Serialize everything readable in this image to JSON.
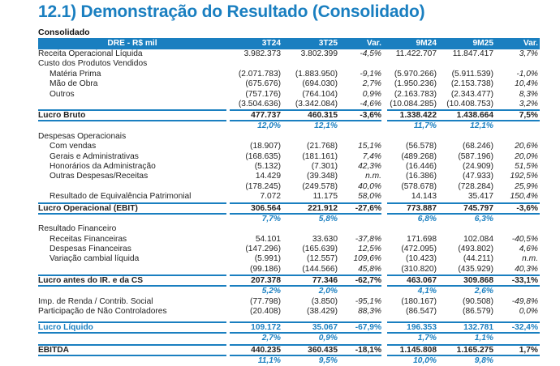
{
  "title": "12.1) Demonstração do Resultado (Consolidado)",
  "subtitle": "Consolidado",
  "colors": {
    "accent": "#1a7fc0"
  },
  "table": {
    "headers": [
      "DRE - R$ mil",
      "3T24",
      "3T25",
      "Var.",
      "9M24",
      "9M25",
      "Var."
    ],
    "rows": [
      {
        "type": "normal",
        "cells": [
          "Receita Operacional Líquida",
          "3.982.373",
          "3.802.399",
          "-4,5%",
          "11.422.707",
          "11.847.417",
          "3,7%"
        ]
      },
      {
        "type": "normal",
        "cells": [
          "Custo dos Produtos Vendidos",
          "",
          "",
          "",
          "",
          "",
          ""
        ]
      },
      {
        "type": "indent",
        "cells": [
          "Matéria Prima",
          "(2.071.783)",
          "(1.883.950)",
          "-9,1%",
          "(5.970.266)",
          "(5.911.539)",
          "-1,0%"
        ]
      },
      {
        "type": "indent",
        "cells": [
          "Mão de Obra",
          "(675.676)",
          "(694.030)",
          "2,7%",
          "(1.950.236)",
          "(2.153.738)",
          "10,4%"
        ]
      },
      {
        "type": "indent",
        "cells": [
          "Outros",
          "(757.176)",
          "(764.104)",
          "0,9%",
          "(2.163.783)",
          "(2.343.477)",
          "8,3%"
        ]
      },
      {
        "type": "normal",
        "cells": [
          "",
          "(3.504.636)",
          "(3.342.084)",
          "-4,6%",
          "(10.084.285)",
          "(10.408.753)",
          "3,2%"
        ]
      },
      {
        "type": "bold",
        "cells": [
          "Lucro Bruto",
          "477.737",
          "460.315",
          "-3,6%",
          "1.338.422",
          "1.438.664",
          "7,5%"
        ]
      },
      {
        "type": "margin",
        "cells": [
          "",
          "12,0%",
          "12,1%",
          "",
          "11,7%",
          "12,1%",
          ""
        ]
      },
      {
        "type": "normal",
        "cells": [
          "Despesas Operacionais",
          "",
          "",
          "",
          "",
          "",
          ""
        ]
      },
      {
        "type": "indent",
        "cells": [
          "Com vendas",
          "(18.907)",
          "(21.768)",
          "15,1%",
          "(56.578)",
          "(68.246)",
          "20,6%"
        ]
      },
      {
        "type": "indent",
        "cells": [
          "Gerais e Administrativas",
          "(168.635)",
          "(181.161)",
          "7,4%",
          "(489.268)",
          "(587.196)",
          "20,0%"
        ]
      },
      {
        "type": "indent",
        "cells": [
          "Honorários da Administração",
          "(5.132)",
          "(7.301)",
          "42,3%",
          "(16.446)",
          "(24.909)",
          "51,5%"
        ]
      },
      {
        "type": "indent",
        "cells": [
          "Outras Despesas/Receitas",
          "14.429",
          "(39.348)",
          "n.m.",
          "(16.386)",
          "(47.933)",
          "192,5%"
        ]
      },
      {
        "type": "normal",
        "cells": [
          "",
          "(178.245)",
          "(249.578)",
          "40,0%",
          "(578.678)",
          "(728.284)",
          "25,9%"
        ]
      },
      {
        "type": "indent",
        "cells": [
          "Resultado de Equivalência Patrimonial",
          "7.072",
          "11.175",
          "58,0%",
          "14.143",
          "35.417",
          "150,4%"
        ]
      },
      {
        "type": "bold",
        "cells": [
          "Lucro Operacional (EBIT)",
          "306.564",
          "221.912",
          "-27,6%",
          "773.887",
          "745.797",
          "-3,6%"
        ]
      },
      {
        "type": "margin",
        "cells": [
          "",
          "7,7%",
          "5,8%",
          "",
          "6,8%",
          "6,3%",
          ""
        ]
      },
      {
        "type": "normal",
        "cells": [
          "Resultado Financeiro",
          "",
          "",
          "",
          "",
          "",
          ""
        ]
      },
      {
        "type": "indent",
        "cells": [
          "Receitas Financeiras",
          "54.101",
          "33.630",
          "-37,8%",
          "171.698",
          "102.084",
          "-40,5%"
        ]
      },
      {
        "type": "indent",
        "cells": [
          "Despesas Financeiras",
          "(147.296)",
          "(165.639)",
          "12,5%",
          "(472.095)",
          "(493.802)",
          "4,6%"
        ]
      },
      {
        "type": "indent",
        "cells": [
          "Variação cambial líquida",
          "(5.991)",
          "(12.557)",
          "109,6%",
          "(10.423)",
          "(44.211)",
          "n.m."
        ]
      },
      {
        "type": "normal",
        "cells": [
          "",
          "(99.186)",
          "(144.566)",
          "45,8%",
          "(310.820)",
          "(435.929)",
          "40,3%"
        ]
      },
      {
        "type": "bold",
        "cells": [
          "Lucro antes do IR. e da CS",
          "207.378",
          "77.346",
          "-62,7%",
          "463.067",
          "309.868",
          "-33,1%"
        ]
      },
      {
        "type": "margin",
        "cells": [
          "",
          "5,2%",
          "2,0%",
          "",
          "4,1%",
          "2,6%",
          ""
        ]
      },
      {
        "type": "normal",
        "cells": [
          "Imp. de Renda / Contrib. Social",
          "(77.798)",
          "(3.850)",
          "-95,1%",
          "(180.167)",
          "(90.508)",
          "-49,8%"
        ]
      },
      {
        "type": "normal",
        "cells": [
          "Participação de Não Controladores",
          "(20.408)",
          "(38.429)",
          "88,3%",
          "(86.547)",
          "(86.579)",
          "0,0%"
        ]
      },
      {
        "type": "blank",
        "cells": [
          "",
          "",
          "",
          "",
          "",
          "",
          ""
        ]
      },
      {
        "type": "bold blue",
        "cells": [
          "Lucro Líquido",
          "109.172",
          "35.067",
          "-67,9%",
          "196.353",
          "132.781",
          "-32,4%"
        ]
      },
      {
        "type": "margin",
        "cells": [
          "",
          "2,7%",
          "0,9%",
          "",
          "1,7%",
          "1,1%",
          ""
        ]
      },
      {
        "type": "bold",
        "cells": [
          "EBITDA",
          "440.235",
          "360.435",
          "-18,1%",
          "1.145.808",
          "1.165.275",
          "1,7%"
        ]
      },
      {
        "type": "margin",
        "cells": [
          "",
          "11,1%",
          "9,5%",
          "",
          "10,0%",
          "9,8%",
          ""
        ]
      }
    ]
  }
}
